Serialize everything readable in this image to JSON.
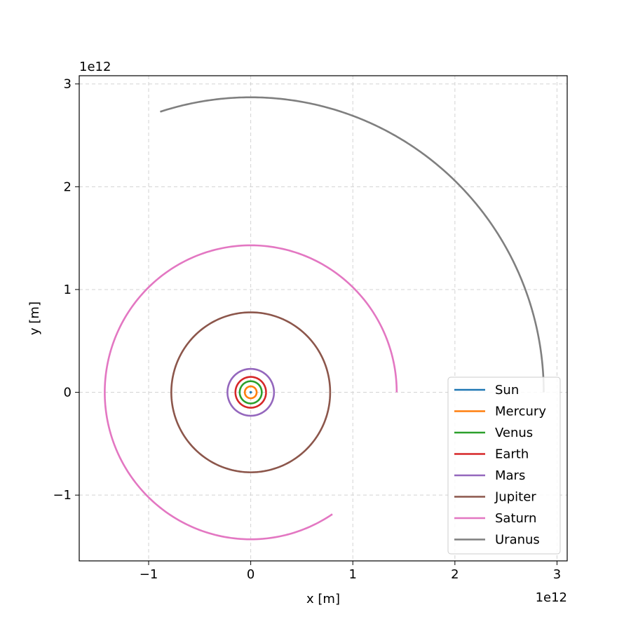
{
  "chart_data": {
    "type": "line",
    "xlabel": "x [m]",
    "ylabel": "y [m]",
    "x_offset_label": "1e12",
    "y_offset_label": "1e12",
    "xlim": [
      -1680000000000.0,
      3100000000000.0
    ],
    "ylim": [
      -1640000000000.0,
      3080000000000.0
    ],
    "x_ticks": [
      -1000000000000.0,
      0,
      1000000000000.0,
      2000000000000.0,
      3000000000000.0
    ],
    "x_tick_labels": [
      "−1",
      "0",
      "1",
      "2",
      "3"
    ],
    "y_ticks": [
      -1000000000000.0,
      0,
      1000000000000.0,
      2000000000000.0,
      3000000000000.0
    ],
    "y_tick_labels": [
      "−1",
      "0",
      "1",
      "2",
      "3"
    ],
    "grid": true,
    "grid_style": "dashed",
    "legend_position": "lower-right",
    "series": [
      {
        "name": "Sun",
        "color": "#1f77b4",
        "radius": 0.0,
        "start_deg": 0,
        "end_deg": 0
      },
      {
        "name": "Mercury",
        "color": "#ff7f0e",
        "radius": 58000000000.0,
        "start_deg": 0,
        "end_deg": 360
      },
      {
        "name": "Venus",
        "color": "#2ca02c",
        "radius": 108000000000.0,
        "start_deg": 0,
        "end_deg": 360
      },
      {
        "name": "Earth",
        "color": "#d62728",
        "radius": 150000000000.0,
        "start_deg": 0,
        "end_deg": 360
      },
      {
        "name": "Mars",
        "color": "#9467bd",
        "radius": 228000000000.0,
        "start_deg": 0,
        "end_deg": 360
      },
      {
        "name": "Jupiter",
        "color": "#8c564b",
        "radius": 778000000000.0,
        "start_deg": 0,
        "end_deg": 360
      },
      {
        "name": "Saturn",
        "color": "#e377c2",
        "radius": 1430000000000.0,
        "start_deg": 0,
        "end_deg": 304
      },
      {
        "name": "Uranus",
        "color": "#7f7f7f",
        "radius": 2870000000000.0,
        "start_deg": 0,
        "end_deg": 108
      }
    ]
  }
}
